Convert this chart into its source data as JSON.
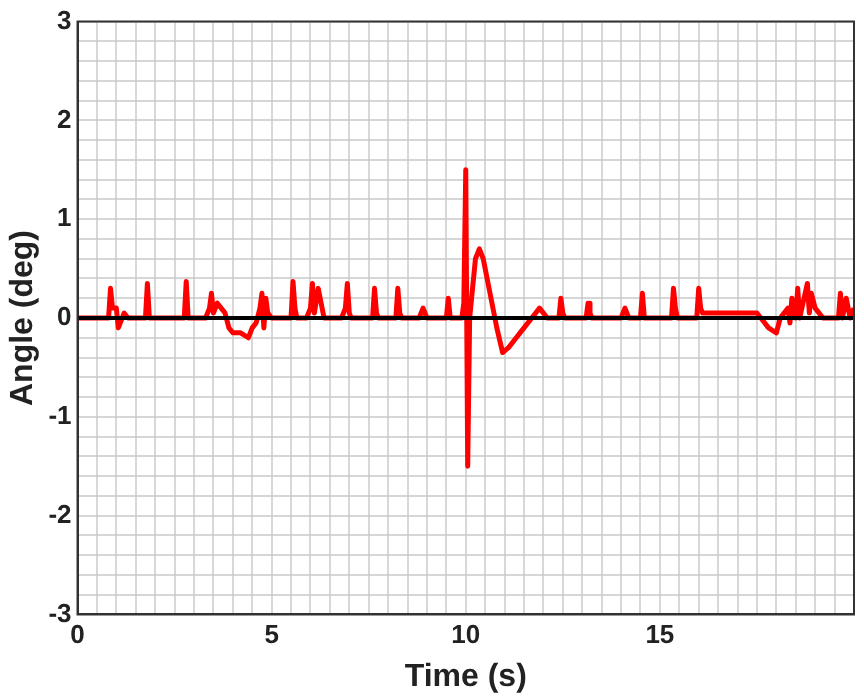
{
  "chart_data": {
    "type": "line",
    "xlabel": "Time (s)",
    "ylabel": "Angle (deg)",
    "xlim": [
      0,
      20
    ],
    "ylim": [
      -3,
      3
    ],
    "xticks": [
      0,
      {
        "value": 0.5,
        "label": null
      },
      {
        "value": 1,
        "label": null
      },
      {
        "value": 1.5,
        "label": null
      },
      {
        "value": 2,
        "label": null
      },
      {
        "value": 2.5,
        "label": null
      },
      {
        "value": 3,
        "label": null
      },
      {
        "value": 3.5,
        "label": null
      },
      {
        "value": 4,
        "label": null
      },
      {
        "value": 4.5,
        "label": null
      },
      5,
      {
        "value": 5.5,
        "label": null
      },
      {
        "value": 6,
        "label": null
      },
      {
        "value": 6.5,
        "label": null
      },
      {
        "value": 7,
        "label": null
      },
      {
        "value": 7.5,
        "label": null
      },
      {
        "value": 8,
        "label": null
      },
      {
        "value": 8.5,
        "label": null
      },
      {
        "value": 9,
        "label": null
      },
      {
        "value": 9.5,
        "label": null
      },
      10,
      {
        "value": 10.5,
        "label": null
      },
      {
        "value": 11,
        "label": null
      },
      {
        "value": 11.5,
        "label": null
      },
      {
        "value": 12,
        "label": null
      },
      {
        "value": 12.5,
        "label": null
      },
      {
        "value": 13,
        "label": null
      },
      {
        "value": 13.5,
        "label": null
      },
      {
        "value": 14,
        "label": null
      },
      {
        "value": 14.5,
        "label": null
      },
      15,
      {
        "value": 15.5,
        "label": null
      },
      {
        "value": 16,
        "label": null
      },
      {
        "value": 16.5,
        "label": null
      },
      {
        "value": 17,
        "label": null
      },
      {
        "value": 17.5,
        "label": null
      },
      {
        "value": 18,
        "label": null
      },
      {
        "value": 18.5,
        "label": null
      },
      {
        "value": 19,
        "label": null
      },
      {
        "value": 19.5,
        "label": null
      },
      {
        "value": 20,
        "label": null
      }
    ],
    "yticks": [
      -3,
      {
        "value": -2.8,
        "label": null
      },
      {
        "value": -2.6,
        "label": null
      },
      {
        "value": -2.4,
        "label": null
      },
      {
        "value": -2.2,
        "label": null
      },
      -2,
      {
        "value": -1.8,
        "label": null
      },
      {
        "value": -1.6,
        "label": null
      },
      {
        "value": -1.4,
        "label": null
      },
      {
        "value": -1.2,
        "label": null
      },
      -1,
      {
        "value": -0.8,
        "label": null
      },
      {
        "value": -0.6,
        "label": null
      },
      {
        "value": -0.4,
        "label": null
      },
      {
        "value": -0.2,
        "label": null
      },
      0,
      {
        "value": 0.2,
        "label": null
      },
      {
        "value": 0.4,
        "label": null
      },
      {
        "value": 0.6,
        "label": null
      },
      {
        "value": 0.8,
        "label": null
      },
      1,
      {
        "value": 1.2,
        "label": null
      },
      {
        "value": 1.4,
        "label": null
      },
      {
        "value": 1.6,
        "label": null
      },
      {
        "value": 1.8,
        "label": null
      },
      2,
      {
        "value": 2.2,
        "label": null
      },
      {
        "value": 2.4,
        "label": null
      },
      {
        "value": 2.6,
        "label": null
      },
      {
        "value": 2.8,
        "label": null
      },
      3
    ],
    "grid": true,
    "marker": "none",
    "line_style": "solid",
    "ref_lines": [
      {
        "axis": "y",
        "value": 0,
        "color": "#000000"
      }
    ],
    "series": [
      {
        "color": "#ff0000",
        "x": [
          0,
          0.8,
          0.85,
          0.9,
          1.0,
          1.05,
          1.2,
          1.3,
          1.75,
          1.8,
          1.85,
          2.6,
          2.75,
          2.8,
          2.85,
          3.3,
          3.4,
          3.45,
          3.5,
          3.6,
          3.7,
          3.8,
          3.9,
          4.0,
          4.2,
          4.4,
          4.5,
          4.6,
          4.7,
          4.75,
          4.8,
          4.85,
          4.9,
          5.0,
          5.5,
          5.55,
          5.6,
          5.65,
          5.9,
          6.0,
          6.05,
          6.1,
          6.2,
          6.3,
          6.35,
          6.8,
          6.9,
          6.95,
          7.0,
          7.05,
          7.6,
          7.65,
          7.7,
          7.75,
          8.2,
          8.25,
          8.3,
          8.35,
          8.8,
          8.9,
          9.0,
          9.5,
          9.55,
          9.6,
          9.9,
          9.95,
          10.0,
          10.05,
          10.1,
          10.15,
          10.25,
          10.35,
          10.45,
          10.6,
          10.8,
          10.95,
          11.1,
          11.3,
          11.5,
          11.7,
          11.9,
          12.1,
          12.4,
          12.45,
          12.5,
          12.55,
          13.1,
          13.15,
          13.2,
          13.25,
          14.0,
          14.1,
          14.2,
          14.5,
          14.55,
          14.6,
          15.3,
          15.35,
          15.4,
          15.45,
          15.95,
          16.0,
          16.05,
          16.1,
          17.5,
          17.6,
          17.8,
          18.0,
          18.1,
          18.3,
          18.35,
          18.4,
          18.5,
          18.55,
          18.6,
          18.8,
          18.85,
          18.9,
          19.0,
          19.2,
          19.3,
          19.6,
          19.65,
          19.7,
          19.8,
          19.9,
          20
        ],
        "values": [
          0,
          0,
          0.3,
          0.1,
          0.1,
          -0.1,
          0.05,
          0,
          0,
          0.35,
          0,
          0,
          0,
          0.37,
          0,
          0,
          0.1,
          0.25,
          0.05,
          0.15,
          0.1,
          0.05,
          -0.1,
          -0.15,
          -0.15,
          -0.2,
          -0.1,
          -0.05,
          0.1,
          0.25,
          -0.1,
          0.2,
          0.05,
          0,
          0,
          0.37,
          0.1,
          0,
          0,
          0.1,
          0.35,
          0.05,
          0.3,
          0.1,
          0,
          0,
          0.1,
          0.35,
          0.05,
          0,
          0,
          0.3,
          0.05,
          0,
          0,
          0.3,
          0.05,
          0,
          0,
          0.1,
          0,
          0,
          0.2,
          0,
          0,
          0.15,
          1.5,
          -1.5,
          0,
          0.2,
          0.6,
          0.7,
          0.6,
          0.3,
          -0.1,
          -0.35,
          -0.3,
          -0.2,
          -0.1,
          0,
          0.1,
          0,
          0,
          0.2,
          0.05,
          0,
          0,
          0.15,
          0.05,
          0,
          0,
          0.1,
          0,
          0,
          0.25,
          0,
          0,
          0.3,
          0.1,
          0,
          0,
          0.3,
          0.1,
          0.05,
          0.05,
          0,
          -0.1,
          -0.15,
          0,
          0.1,
          -0.05,
          0.2,
          0,
          0.3,
          0,
          0.35,
          0.05,
          0.25,
          0.1,
          0,
          0,
          0,
          0.25,
          0,
          0.2,
          0,
          0.1
        ]
      }
    ]
  }
}
